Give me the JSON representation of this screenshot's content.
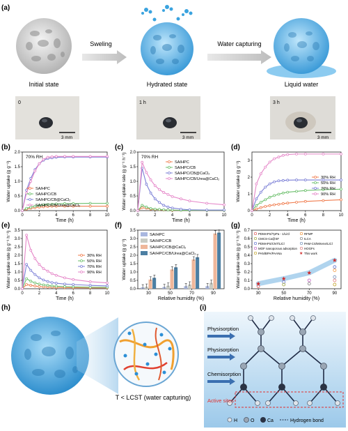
{
  "panel_letters": [
    "(a)",
    "(b)",
    "(c)",
    "(d)",
    "(e)",
    "(f)",
    "(g)",
    "(h)",
    "(i)"
  ],
  "panel_a": {
    "arrow1": "Sweling",
    "arrow2": "Water capturing",
    "states": [
      "Initial state",
      "Hydrated state",
      "Liquid water"
    ],
    "photo_times": [
      "0",
      "1 h",
      "3 h"
    ],
    "scale": "3 mm"
  },
  "chart_data": [
    {
      "id": "b",
      "type": "line",
      "annotation": "70% RH",
      "xlabel": "Time (h)",
      "ylabel": "Water uptake (g g⁻¹)",
      "xlim": [
        0,
        10
      ],
      "ylim": [
        0,
        2.0
      ],
      "xticks": [
        "0",
        "2",
        "4",
        "6",
        "8",
        "10"
      ],
      "yticks": [
        "0.0",
        "0.5",
        "1.0",
        "1.5",
        "2.0"
      ],
      "x": [
        0,
        0.5,
        1,
        1.5,
        2,
        2.5,
        3,
        3.5,
        4,
        5,
        6,
        8,
        10
      ],
      "series": [
        {
          "name": "SA/HPC",
          "color": "#f07c4e",
          "values": [
            0,
            0.05,
            0.08,
            0.1,
            0.12,
            0.13,
            0.14,
            0.15,
            0.15,
            0.15,
            0.15,
            0.15,
            0.15
          ]
        },
        {
          "name": "SA/HPC/CB",
          "color": "#6cbf6c",
          "values": [
            0,
            0.08,
            0.12,
            0.15,
            0.18,
            0.2,
            0.21,
            0.22,
            0.23,
            0.24,
            0.24,
            0.25,
            0.25
          ]
        },
        {
          "name": "SA/HPC/CB@CaCl₂",
          "color": "#7b7fd6",
          "values": [
            0,
            0.7,
            1.1,
            1.4,
            1.6,
            1.72,
            1.78,
            1.8,
            1.82,
            1.83,
            1.83,
            1.83,
            1.83
          ]
        },
        {
          "name": "SA/HPC/CB/Urea@CaCl₂",
          "color": "#e586c8",
          "values": [
            0,
            0.6,
            1.0,
            1.35,
            1.6,
            1.75,
            1.82,
            1.84,
            1.85,
            1.85,
            1.85,
            1.85,
            1.85
          ]
        }
      ]
    },
    {
      "id": "c",
      "type": "line",
      "annotation": "70% RH",
      "xlabel": "Time (h)",
      "ylabel": "Water uptake rate (g g⁻¹ h⁻¹)",
      "xlim": [
        0,
        10
      ],
      "ylim": [
        0,
        2.0
      ],
      "xticks": [
        "0",
        "2",
        "4",
        "6",
        "8",
        "10"
      ],
      "yticks": [
        "0.0",
        "0.5",
        "1.0",
        "1.5",
        "2.0"
      ],
      "x": [
        0,
        0.5,
        1,
        1.5,
        2,
        2.5,
        3,
        3.5,
        4,
        5,
        6,
        8,
        10
      ],
      "series": [
        {
          "name": "SA/HPC",
          "color": "#f07c4e",
          "values": [
            0,
            0.1,
            0.08,
            0.05,
            0.04,
            0.03,
            0.02,
            0.02,
            0.01,
            0.01,
            0.01,
            0.01,
            0.01
          ]
        },
        {
          "name": "SA/HPC/CB",
          "color": "#6cbf6c",
          "values": [
            0,
            0.18,
            0.12,
            0.07,
            0.05,
            0.04,
            0.03,
            0.02,
            0.02,
            0.01,
            0.01,
            0.01,
            0.01
          ]
        },
        {
          "name": "SA/HPC/CB@CaCl₂",
          "color": "#7b7fd6",
          "values": [
            0,
            1.45,
            0.9,
            0.6,
            0.4,
            0.28,
            0.18,
            0.12,
            0.09,
            0.05,
            0.03,
            0.02,
            0.02
          ]
        },
        {
          "name": "SA/HPC/CB/Urea@CaCl₂",
          "color": "#e586c8",
          "values": [
            0,
            1.65,
            1.3,
            1.05,
            0.85,
            0.72,
            0.62,
            0.55,
            0.48,
            0.4,
            0.33,
            0.25,
            0.2
          ]
        }
      ]
    },
    {
      "id": "d",
      "type": "line",
      "xlabel": "Time (h)",
      "ylabel": "Water uptake (g g⁻¹)",
      "xlim": [
        0,
        10
      ],
      "ylim": [
        0,
        3.5
      ],
      "xticks": [
        "0",
        "2",
        "4",
        "6",
        "8",
        "10"
      ],
      "yticks": [
        "0",
        "1",
        "2",
        "3"
      ],
      "x": [
        0,
        0.5,
        1,
        1.5,
        2,
        2.5,
        3,
        3.5,
        4,
        5,
        6,
        8,
        10
      ],
      "series": [
        {
          "name": "30% RH",
          "color": "#f07c4e",
          "values": [
            0,
            0.1,
            0.18,
            0.25,
            0.3,
            0.35,
            0.38,
            0.42,
            0.45,
            0.5,
            0.55,
            0.6,
            0.65
          ]
        },
        {
          "name": "50% RH",
          "color": "#6cbf6c",
          "values": [
            0,
            0.3,
            0.5,
            0.65,
            0.8,
            0.9,
            0.98,
            1.05,
            1.1,
            1.15,
            1.2,
            1.25,
            1.28
          ]
        },
        {
          "name": "70% RH",
          "color": "#7b7fd6",
          "values": [
            0,
            0.7,
            1.1,
            1.4,
            1.6,
            1.72,
            1.78,
            1.8,
            1.82,
            1.83,
            1.83,
            1.83,
            1.83
          ]
        },
        {
          "name": "90% RH",
          "color": "#e586c8",
          "values": [
            0,
            1.6,
            2.2,
            2.6,
            2.9,
            3.1,
            3.2,
            3.3,
            3.35,
            3.38,
            3.38,
            3.38,
            3.38
          ]
        }
      ]
    },
    {
      "id": "e",
      "type": "line",
      "xlabel": "Time (h)",
      "ylabel": "Water uptake rate (g g⁻¹ h⁻¹)",
      "xlim": [
        0,
        10
      ],
      "ylim": [
        0,
        3.5
      ],
      "xticks": [
        "0",
        "2",
        "4",
        "6",
        "8",
        "10"
      ],
      "yticks": [
        "0.0",
        "0.5",
        "1.0",
        "1.5",
        "2.0",
        "2.5",
        "3.0",
        "3.5"
      ],
      "x": [
        0,
        0.5,
        1,
        1.5,
        2,
        2.5,
        3,
        3.5,
        4,
        5,
        6,
        8,
        10
      ],
      "series": [
        {
          "name": "30% RH",
          "color": "#f07c4e",
          "values": [
            0,
            0.25,
            0.2,
            0.16,
            0.13,
            0.11,
            0.1,
            0.09,
            0.08,
            0.07,
            0.06,
            0.05,
            0.05
          ]
        },
        {
          "name": "50% RH",
          "color": "#6cbf6c",
          "values": [
            0,
            0.6,
            0.45,
            0.35,
            0.28,
            0.23,
            0.2,
            0.17,
            0.15,
            0.13,
            0.11,
            0.09,
            0.08
          ]
        },
        {
          "name": "70% RH",
          "color": "#7b7fd6",
          "values": [
            0,
            1.45,
            1.1,
            0.85,
            0.65,
            0.52,
            0.43,
            0.37,
            0.33,
            0.28,
            0.25,
            0.2,
            0.17
          ]
        },
        {
          "name": "90% RH",
          "color": "#e586c8",
          "values": [
            0,
            3.2,
            2.3,
            1.8,
            1.45,
            1.2,
            1.05,
            0.9,
            0.8,
            0.65,
            0.55,
            0.42,
            0.35
          ]
        }
      ]
    },
    {
      "id": "f",
      "type": "bar",
      "xlabel": "Relative humidity (%)",
      "ylabel": "Water uptake (g g⁻¹)",
      "ylim": [
        0,
        3.5
      ],
      "yticks": [
        "0.0",
        "0.5",
        "1.0",
        "1.5",
        "2.0",
        "2.5",
        "3.0",
        "3.5"
      ],
      "categories": [
        "30",
        "50",
        "70",
        "90"
      ],
      "series": [
        {
          "name": "SA/HPC",
          "color": "#a9b7e0",
          "values": [
            0.08,
            0.1,
            0.15,
            0.15
          ]
        },
        {
          "name": "SA/HPC/CB",
          "color": "#c9ccc4",
          "values": [
            0.12,
            0.18,
            0.25,
            0.35
          ]
        },
        {
          "name": "SA/HPC/CB@CaCl₂",
          "color": "#efb79a",
          "values": [
            0.55,
            1.15,
            1.75,
            3.3
          ]
        },
        {
          "name": "SA/HPC/CB/Urea@CaCl₂",
          "color": "#4c7fa3",
          "values": [
            0.65,
            1.28,
            1.88,
            3.35
          ]
        }
      ]
    },
    {
      "id": "g",
      "type": "scatter",
      "xlabel": "Relative humidity (%)",
      "ylabel": "Water uptake rate (g g⁻¹ h⁻¹)",
      "xlim": [
        25,
        95
      ],
      "ylim": [
        0,
        0.7
      ],
      "xticks": [
        "30",
        "50",
        "70",
        "90"
      ],
      "yticks": [
        "0.0",
        "0.1",
        "0.2",
        "0.3",
        "0.4",
        "0.5",
        "0.6",
        "0.7"
      ],
      "legend": [
        {
          "name": "PDMAPS/TpPa - 1/LiCl",
          "color": "#e05050",
          "marker": "circle"
        },
        {
          "name": "RFMP",
          "color": "#f09030",
          "marker": "square"
        },
        {
          "name": "CMCS-Ca@SF",
          "color": "#9aa33a",
          "marker": "square"
        },
        {
          "name": "ILCA",
          "color": "#808080",
          "marker": "diamond"
        },
        {
          "name": "PDMAPS/CNT/LiCl",
          "color": "#5a6fd0",
          "marker": "triangle"
        },
        {
          "name": "PAM-CS/MXene/LiCl",
          "color": "#6e8db8",
          "marker": "circle"
        },
        {
          "name": "MOF nanoporous adsorption",
          "color": "#c060c0",
          "marker": "triangle-down"
        },
        {
          "name": "HOGFs",
          "color": "#e07a7a",
          "marker": "circle"
        },
        {
          "name": "PAN/BPA/PAANa",
          "color": "#c0a020",
          "marker": "hexagon"
        },
        {
          "name": "This work",
          "color": "#d02a2a",
          "marker": "star"
        }
      ],
      "this_work": {
        "x": [
          30,
          50,
          70,
          90
        ],
        "y": [
          0.06,
          0.12,
          0.19,
          0.34
        ]
      },
      "others": [
        {
          "x": 30,
          "y": 0.03,
          "color": "#e05050"
        },
        {
          "x": 50,
          "y": 0.08,
          "color": "#5a6fd0"
        },
        {
          "x": 50,
          "y": 0.05,
          "color": "#9aa33a"
        },
        {
          "x": 70,
          "y": 0.1,
          "color": "#c060c0"
        },
        {
          "x": 70,
          "y": 0.06,
          "color": "#808080"
        },
        {
          "x": 90,
          "y": 0.22,
          "color": "#f09030"
        },
        {
          "x": 90,
          "y": 0.14,
          "color": "#6e8db8"
        },
        {
          "x": 90,
          "y": 0.1,
          "color": "#e07a7a"
        },
        {
          "x": 90,
          "y": 0.05,
          "color": "#c0a020"
        },
        {
          "x": 90,
          "y": 0.26,
          "color": "#5a6fd0"
        }
      ]
    }
  ],
  "panel_h": {
    "caption": "T < LCST (water capturing)"
  },
  "panel_i": {
    "labels": [
      "Physisorption",
      "Physisorption",
      "Chemisorption",
      "Active sites"
    ],
    "legend": [
      "H",
      "O",
      "Ca",
      "Hydrogen bond"
    ]
  }
}
